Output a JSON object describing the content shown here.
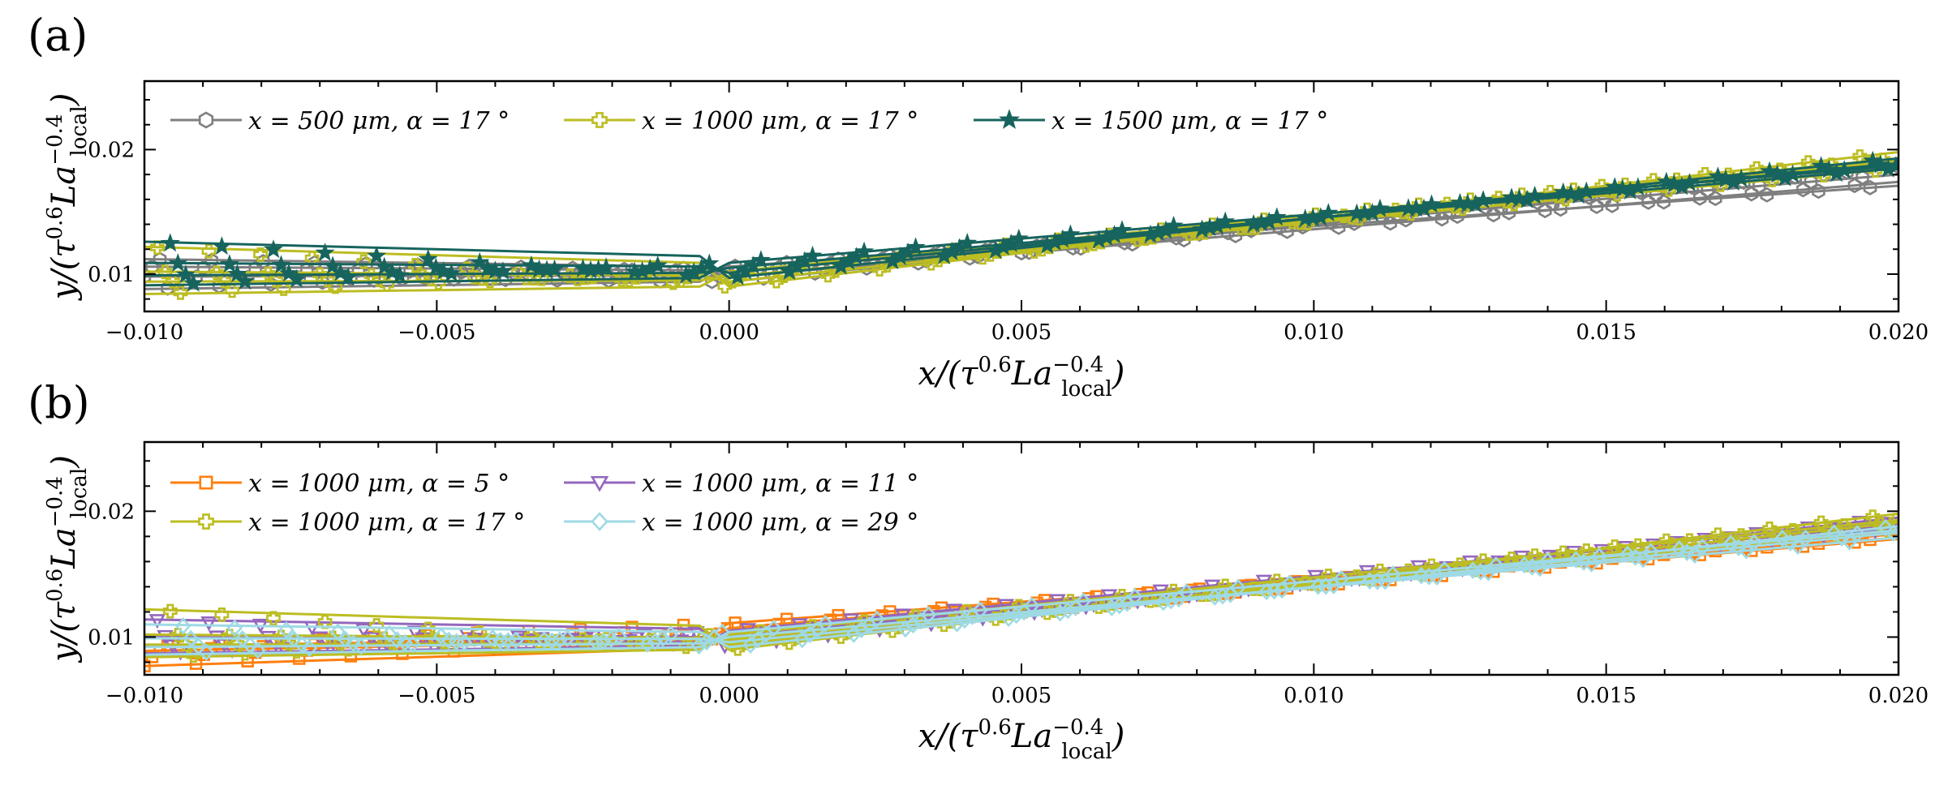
{
  "chart_data": [
    {
      "panel_label": "(a)",
      "type": "line",
      "xlabel": {
        "prefix": "x/(τ",
        "sup1": "0.6",
        "mid": "La",
        "sup2": "−0.4",
        "sub": "local",
        "suffix": ")"
      },
      "ylabel": {
        "prefix": "y/(τ",
        "sup1": "0.6",
        "mid": "La",
        "sup2": "−0.4",
        "sub": "local",
        "suffix": ")"
      },
      "xlim": [
        -0.01,
        0.02
      ],
      "ylim": [
        0.007,
        0.0255
      ],
      "xticks": [
        -0.01,
        -0.005,
        0.0,
        0.005,
        0.01,
        0.015,
        0.02
      ],
      "xtick_labels": [
        "−0.010",
        "−0.005",
        "0.000",
        "0.005",
        "0.010",
        "0.015",
        "0.020"
      ],
      "yticks": [
        0.01,
        0.02
      ],
      "ytick_labels": [
        "0.01",
        "0.02"
      ],
      "legend_position": "top-left",
      "series": [
        {
          "name": "x = 500 μm, α = 17 °",
          "color": "#7f7f7f",
          "marker": "hexagon",
          "x": [
            -0.0098,
            -0.006,
            -0.003,
            -0.001,
            0.0,
            0.002,
            0.005,
            0.008,
            0.011,
            0.014,
            0.017,
            0.018
          ],
          "bands": [
            0.0098,
            0.0106,
            0.0112,
            0.0088
          ],
          "y_right": [
            0.0186,
            0.0174,
            0.018,
            0.0171
          ]
        },
        {
          "name": "x = 1000 μm, α = 17 °",
          "color": "#bcbd22",
          "marker": "plus-square",
          "x": [
            -0.0098,
            -0.006,
            -0.003,
            -0.001,
            0.0,
            0.002,
            0.005,
            0.008,
            0.011,
            0.014,
            0.017,
            0.0195
          ],
          "bands": [
            0.0122,
            0.0102,
            0.0094,
            0.0084
          ],
          "y_right": [
            0.0198,
            0.0191,
            0.0185,
            0.0193
          ]
        },
        {
          "name": "x = 1500 μm, α = 17 °",
          "color": "#17645e",
          "marker": "star",
          "x": [
            -0.0098,
            -0.006,
            -0.003,
            -0.001,
            0.0,
            0.002,
            0.005,
            0.008,
            0.011,
            0.014,
            0.017,
            0.0195
          ],
          "bands": [
            0.0126,
            0.0109,
            0.0099,
            0.0091
          ],
          "y_right": [
            0.0193,
            0.0189,
            0.0185,
            0.0187
          ]
        }
      ]
    },
    {
      "panel_label": "(b)",
      "type": "line",
      "xlabel": {
        "prefix": "x/(τ",
        "sup1": "0.6",
        "mid": "La",
        "sup2": "−0.4",
        "sub": "local",
        "suffix": ")"
      },
      "ylabel": {
        "prefix": "y/(τ",
        "sup1": "0.6",
        "mid": "La",
        "sup2": "−0.4",
        "sub": "local",
        "suffix": ")"
      },
      "xlim": [
        -0.01,
        0.02
      ],
      "ylim": [
        0.007,
        0.0255
      ],
      "xticks": [
        -0.01,
        -0.005,
        0.0,
        0.005,
        0.01,
        0.015,
        0.02
      ],
      "xtick_labels": [
        "−0.010",
        "−0.005",
        "0.000",
        "0.005",
        "0.010",
        "0.015",
        "0.020"
      ],
      "yticks": [
        0.01,
        0.02
      ],
      "ytick_labels": [
        "0.01",
        "0.02"
      ],
      "legend_position": "top-left",
      "series": [
        {
          "name": "x = 1000 μm, α = 5 °",
          "color": "#ff7f0e",
          "marker": "square",
          "x": [
            -0.0098,
            -0.006,
            -0.003,
            -0.001,
            0.0,
            0.002,
            0.005,
            0.008,
            0.011,
            0.014,
            0.017,
            0.0195
          ],
          "bands": [
            0.0077,
            0.0084,
            0.0089,
            0.0093
          ],
          "y_right": [
            0.0182,
            0.0178,
            0.0184,
            0.0179
          ]
        },
        {
          "name": "x = 1000 μm, α = 11 °",
          "color": "#9467bd",
          "marker": "triangle-down",
          "x": [
            -0.0098,
            -0.006,
            -0.003,
            -0.001,
            0.0,
            0.002,
            0.005,
            0.008,
            0.011,
            0.014,
            0.017,
            0.0195
          ],
          "bands": [
            0.0114,
            0.0101,
            0.0093,
            0.0087
          ],
          "y_right": [
            0.0195,
            0.019,
            0.0186,
            0.0192
          ]
        },
        {
          "name": "x = 1000 μm, α = 17 °",
          "color": "#bcbd22",
          "marker": "plus-square",
          "x": [
            -0.0098,
            -0.006,
            -0.003,
            -0.001,
            0.0,
            0.002,
            0.005,
            0.008,
            0.011,
            0.014,
            0.017,
            0.0195
          ],
          "bands": [
            0.0122,
            0.0102,
            0.0094,
            0.0084
          ],
          "y_right": [
            0.0198,
            0.0191,
            0.0185,
            0.0193
          ]
        },
        {
          "name": "x = 1000 μm, α = 29 °",
          "color": "#9edae5",
          "marker": "diamond",
          "x": [
            -0.0098,
            -0.006,
            -0.003,
            -0.001,
            0.0,
            0.002,
            0.005,
            0.008,
            0.011,
            0.014,
            0.017,
            0.0183
          ],
          "bands": [
            0.011,
            0.0099,
            0.0092,
            0.0086
          ],
          "y_right": [
            0.0188,
            0.0183,
            0.0179,
            0.0185
          ]
        }
      ]
    }
  ]
}
